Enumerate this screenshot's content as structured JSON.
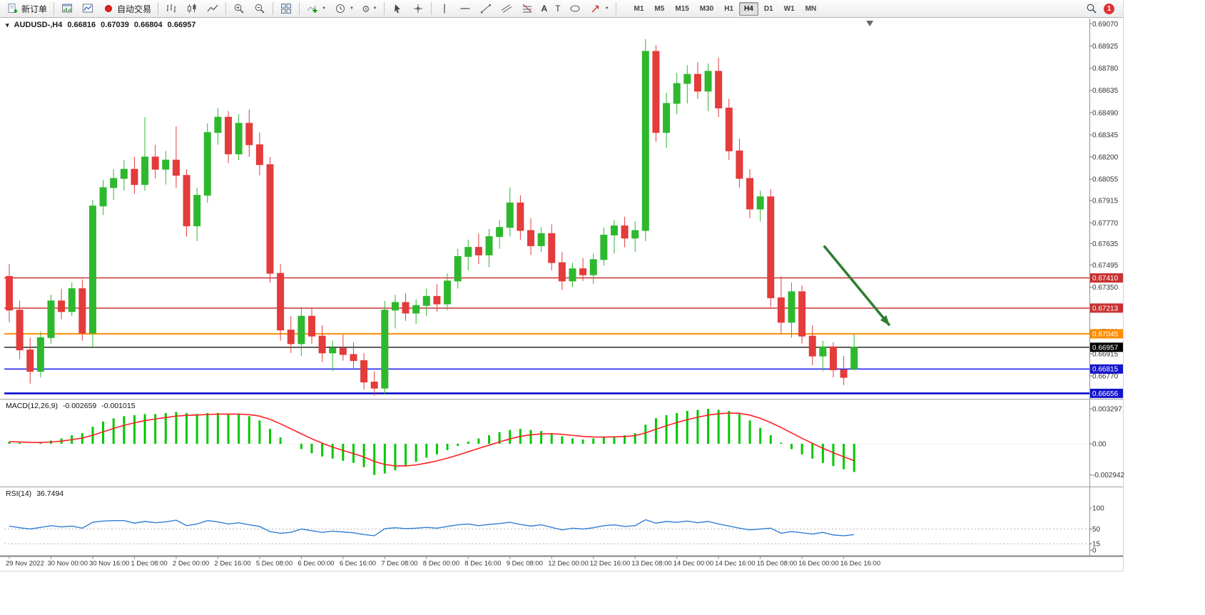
{
  "toolbar": {
    "new_order": "新订单",
    "auto_trading": "自动交易",
    "timeframes": [
      "M1",
      "M5",
      "M15",
      "M30",
      "H1",
      "H4",
      "D1",
      "W1",
      "MN"
    ],
    "active_timeframe": "H4",
    "notification_count": "1",
    "glyphs": {
      "text_tool": "A",
      "label_tool": "T",
      "caret": "▼",
      "gear": "⚙"
    }
  },
  "chart": {
    "glyphs": {
      "menu_triangle": "▾"
    },
    "header": {
      "symbol_period": "AUDUSD-,H4",
      "open": "0.66816",
      "high": "0.67039",
      "low": "0.66804",
      "close": "0.66957"
    },
    "indicators": {
      "macd": {
        "name": "MACD(12,26,9)",
        "value": "-0.002659",
        "signal_value": "-0.001015"
      },
      "rsi": {
        "name": "RSI(14)",
        "value": "36.7494"
      }
    }
  },
  "colors": {
    "bull": "#2eb82e",
    "bear": "#e43b3b",
    "macd_hist": "#00c800",
    "macd_signal": "#ff2020",
    "rsi_line": "#2f7fd6",
    "arrow": "#2e7d32"
  },
  "chart_data": [
    {
      "type": "candlestick",
      "title": "AUDUSD-,H4",
      "ylim": [
        0.66625,
        0.69095
      ],
      "yticks": [
        "0.69070",
        "0.68925",
        "0.68780",
        "0.68635",
        "0.68490",
        "0.68345",
        "0.68200",
        "0.68055",
        "0.67915",
        "0.67770",
        "0.67635",
        "0.67495",
        "0.67350",
        "0.67205",
        "0.67060",
        "0.66915",
        "0.66770"
      ],
      "x_labels": [
        "29 Nov 2022",
        "30 Nov 00:00",
        "30 Nov 16:00",
        "1 Dec 08:00",
        "2 Dec 00:00",
        "2 Dec 16:00",
        "5 Dec 08:00",
        "6 Dec 00:00",
        "6 Dec 16:00",
        "7 Dec 08:00",
        "8 Dec 00:00",
        "8 Dec 16:00",
        "9 Dec 08:00",
        "12 Dec 00:00",
        "12 Dec 16:00",
        "13 Dec 08:00",
        "14 Dec 00:00",
        "14 Dec 16:00",
        "15 Dec 08:00",
        "16 Dec 00:00",
        "16 Dec 16:00"
      ],
      "x_label_step": 4,
      "hlines": [
        {
          "price": 0.6741,
          "color": "#c83232",
          "width": 1.5,
          "label": "0.67410"
        },
        {
          "price": 0.67213,
          "color": "#c83232",
          "width": 1.5,
          "label": "0.67213"
        },
        {
          "price": 0.67045,
          "color": "#ff8c00",
          "width": 2,
          "label": "0.67045"
        },
        {
          "price": 0.66957,
          "color": "#000000",
          "width": 1.2,
          "label": "0.66957"
        },
        {
          "price": 0.66815,
          "color": "#1a1aee",
          "width": 1.5,
          "label": "0.66815"
        },
        {
          "price": 0.66656,
          "color": "#0000cc",
          "width": 2.5,
          "label": "0.66656"
        }
      ],
      "badges": [
        {
          "label": "0.67410",
          "price": 0.6741,
          "bg": "#c83232"
        },
        {
          "label": "0.67213",
          "price": 0.67213,
          "bg": "#c83232"
        },
        {
          "label": "0.67045",
          "price": 0.67045,
          "bg": "#ff8c00"
        },
        {
          "label": "0.66957",
          "price": 0.66957,
          "bg": "#000000"
        },
        {
          "label": "0.66815",
          "price": 0.66815,
          "bg": "#1414cc"
        },
        {
          "label": "0.66656",
          "price": 0.66656,
          "bg": "#1414cc"
        }
      ],
      "arrow": {
        "from_bar": 78.1,
        "from_price": 0.6762,
        "to_bar": 84.4,
        "to_price": 0.671,
        "width": 3.5
      },
      "shift_marker_bar": 82.5,
      "ohlc": [
        [
          0.6742,
          0.675,
          0.6712,
          0.672
        ],
        [
          0.672,
          0.6726,
          0.6688,
          0.6694
        ],
        [
          0.6694,
          0.6702,
          0.6672,
          0.668
        ],
        [
          0.668,
          0.6706,
          0.6676,
          0.6702
        ],
        [
          0.6702,
          0.673,
          0.6698,
          0.6726
        ],
        [
          0.6726,
          0.6734,
          0.6714,
          0.6719
        ],
        [
          0.6719,
          0.6738,
          0.6716,
          0.6734
        ],
        [
          0.6734,
          0.674,
          0.67,
          0.6705
        ],
        [
          0.6705,
          0.6792,
          0.6695,
          0.6788
        ],
        [
          0.6788,
          0.6805,
          0.6782,
          0.68
        ],
        [
          0.68,
          0.6812,
          0.6792,
          0.6806
        ],
        [
          0.6806,
          0.6818,
          0.6798,
          0.6812
        ],
        [
          0.6812,
          0.682,
          0.6796,
          0.6802
        ],
        [
          0.6802,
          0.6846,
          0.6798,
          0.682
        ],
        [
          0.682,
          0.6828,
          0.6806,
          0.6812
        ],
        [
          0.6812,
          0.6824,
          0.6802,
          0.6818
        ],
        [
          0.6818,
          0.684,
          0.68,
          0.6808
        ],
        [
          0.6808,
          0.6812,
          0.6768,
          0.6775
        ],
        [
          0.6775,
          0.68,
          0.6765,
          0.6795
        ],
        [
          0.6795,
          0.6842,
          0.679,
          0.6836
        ],
        [
          0.6836,
          0.6852,
          0.6828,
          0.6846
        ],
        [
          0.6846,
          0.685,
          0.6816,
          0.6822
        ],
        [
          0.6822,
          0.6848,
          0.6818,
          0.6842
        ],
        [
          0.6842,
          0.6851,
          0.682,
          0.6828
        ],
        [
          0.6828,
          0.6836,
          0.6808,
          0.6815
        ],
        [
          0.6815,
          0.682,
          0.6738,
          0.6744
        ],
        [
          0.6744,
          0.675,
          0.67,
          0.6707
        ],
        [
          0.6707,
          0.6716,
          0.6692,
          0.6698
        ],
        [
          0.6698,
          0.6722,
          0.669,
          0.6716
        ],
        [
          0.6716,
          0.6721,
          0.6698,
          0.6703
        ],
        [
          0.6703,
          0.671,
          0.6686,
          0.6692
        ],
        [
          0.6692,
          0.67,
          0.668,
          0.6695
        ],
        [
          0.6695,
          0.6704,
          0.6687,
          0.6691
        ],
        [
          0.6691,
          0.6699,
          0.6681,
          0.6687
        ],
        [
          0.6687,
          0.6692,
          0.6668,
          0.6673
        ],
        [
          0.6673,
          0.668,
          0.6664,
          0.6669
        ],
        [
          0.6669,
          0.6726,
          0.6665,
          0.672
        ],
        [
          0.672,
          0.673,
          0.6708,
          0.6725
        ],
        [
          0.6725,
          0.6731,
          0.6713,
          0.6718
        ],
        [
          0.6718,
          0.6727,
          0.6711,
          0.6723
        ],
        [
          0.6723,
          0.6734,
          0.6716,
          0.6729
        ],
        [
          0.6729,
          0.6737,
          0.6719,
          0.6724
        ],
        [
          0.6724,
          0.6744,
          0.672,
          0.6739
        ],
        [
          0.6739,
          0.676,
          0.6734,
          0.6755
        ],
        [
          0.6755,
          0.6766,
          0.6746,
          0.6761
        ],
        [
          0.6761,
          0.677,
          0.675,
          0.6756
        ],
        [
          0.6756,
          0.6773,
          0.6748,
          0.6768
        ],
        [
          0.6768,
          0.6779,
          0.676,
          0.6774
        ],
        [
          0.6774,
          0.68,
          0.6768,
          0.679
        ],
        [
          0.679,
          0.6795,
          0.6766,
          0.6772
        ],
        [
          0.6772,
          0.678,
          0.6756,
          0.6762
        ],
        [
          0.6762,
          0.6774,
          0.6758,
          0.677
        ],
        [
          0.677,
          0.6776,
          0.6746,
          0.6751
        ],
        [
          0.6751,
          0.6758,
          0.6733,
          0.6739
        ],
        [
          0.6739,
          0.6751,
          0.6735,
          0.6747
        ],
        [
          0.6747,
          0.6754,
          0.6739,
          0.6743
        ],
        [
          0.6743,
          0.6757,
          0.6737,
          0.6753
        ],
        [
          0.6753,
          0.6774,
          0.6749,
          0.6769
        ],
        [
          0.6769,
          0.6779,
          0.6757,
          0.6775
        ],
        [
          0.6775,
          0.6781,
          0.6761,
          0.6767
        ],
        [
          0.6767,
          0.6778,
          0.6758,
          0.6772
        ],
        [
          0.6772,
          0.6897,
          0.6765,
          0.6889
        ],
        [
          0.6889,
          0.6893,
          0.683,
          0.6836
        ],
        [
          0.6836,
          0.6862,
          0.6826,
          0.6855
        ],
        [
          0.6855,
          0.6875,
          0.6848,
          0.6868
        ],
        [
          0.6868,
          0.688,
          0.6855,
          0.6874
        ],
        [
          0.6874,
          0.6882,
          0.6858,
          0.6863
        ],
        [
          0.6863,
          0.6881,
          0.685,
          0.6876
        ],
        [
          0.6876,
          0.6885,
          0.6846,
          0.6852
        ],
        [
          0.6852,
          0.6858,
          0.6818,
          0.6824
        ],
        [
          0.6824,
          0.6832,
          0.68,
          0.6806
        ],
        [
          0.6806,
          0.6812,
          0.678,
          0.6786
        ],
        [
          0.6786,
          0.6798,
          0.6778,
          0.6794
        ],
        [
          0.6794,
          0.6799,
          0.6722,
          0.6728
        ],
        [
          0.6728,
          0.6742,
          0.6705,
          0.6712
        ],
        [
          0.6712,
          0.6738,
          0.6702,
          0.6732
        ],
        [
          0.6732,
          0.6736,
          0.6698,
          0.6703
        ],
        [
          0.6703,
          0.671,
          0.6684,
          0.669
        ],
        [
          0.669,
          0.67,
          0.668,
          0.6696
        ],
        [
          0.6696,
          0.6699,
          0.6676,
          0.6681
        ],
        [
          0.6681,
          0.669,
          0.6671,
          0.6676
        ],
        [
          0.66816,
          0.67039,
          0.66804,
          0.66957
        ]
      ]
    },
    {
      "type": "bar",
      "name": "MACD(12,26,9)",
      "value_label": "-0.002659",
      "signal_label": "-0.001015",
      "ylim": [
        -0.002942,
        0.003297
      ],
      "yticks": [
        "0.003297",
        "0.00",
        "-0.002942"
      ],
      "values": [
        0.0002,
        0.0001,
        0.0,
        0.0001,
        0.0003,
        0.0005,
        0.0008,
        0.001,
        0.0016,
        0.0021,
        0.0024,
        0.0026,
        0.0027,
        0.0028,
        0.0028,
        0.0029,
        0.003,
        0.0029,
        0.0028,
        0.0029,
        0.0029,
        0.0028,
        0.0028,
        0.0026,
        0.0022,
        0.0014,
        0.0006,
        0.0,
        -0.0005,
        -0.0009,
        -0.0012,
        -0.0014,
        -0.0016,
        -0.0018,
        -0.0022,
        -0.00294,
        -0.0028,
        -0.0025,
        -0.0021,
        -0.0017,
        -0.0013,
        -0.001,
        -0.0006,
        -0.0002,
        0.0002,
        0.0005,
        0.0008,
        0.0011,
        0.0013,
        0.0014,
        0.0013,
        0.0012,
        0.001,
        0.0007,
        0.0005,
        0.0004,
        0.0005,
        0.0006,
        0.0007,
        0.0008,
        0.001,
        0.0018,
        0.0024,
        0.0027,
        0.0029,
        0.0031,
        0.0032,
        0.0033,
        0.0032,
        0.0031,
        0.0028,
        0.0022,
        0.0015,
        0.0008,
        0.0001,
        -0.0005,
        -0.001,
        -0.0014,
        -0.0018,
        -0.0021,
        -0.0024,
        -0.002659
      ]
    },
    {
      "type": "line",
      "name": "RSI(14)",
      "current": "36.7494",
      "ylim": [
        0,
        100
      ],
      "yticks": [
        "100",
        "50",
        "15",
        "0"
      ],
      "levels": [
        50,
        15
      ],
      "values": [
        57,
        53,
        50,
        54,
        58,
        55,
        57,
        52,
        66,
        69,
        70,
        70,
        64,
        68,
        65,
        67,
        71,
        58,
        62,
        70,
        67,
        62,
        65,
        60,
        56,
        44,
        40,
        42,
        50,
        46,
        42,
        45,
        43,
        41,
        37,
        34,
        51,
        53,
        51,
        52,
        54,
        52,
        56,
        60,
        62,
        58,
        61,
        63,
        66,
        61,
        57,
        60,
        54,
        48,
        52,
        50,
        53,
        58,
        60,
        56,
        58,
        72,
        64,
        68,
        66,
        69,
        65,
        68,
        62,
        57,
        52,
        48,
        50,
        52,
        40,
        44,
        41,
        38,
        42,
        36,
        34,
        36.75
      ]
    }
  ]
}
